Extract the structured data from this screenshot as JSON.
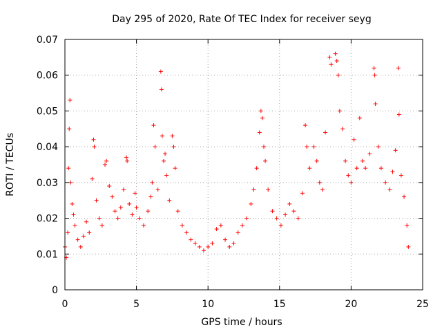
{
  "chart_data": {
    "type": "scatter",
    "title": "Day 295 of 2020, Rate Of TEC Index for receiver seyg",
    "xlabel": "GPS time / hours",
    "ylabel": "ROTI / TECUs",
    "xlim": [
      0,
      25
    ],
    "ylim": [
      0,
      0.07
    ],
    "xticks": [
      0,
      5,
      10,
      15,
      20,
      25
    ],
    "xtick_labels": [
      "0",
      "5",
      "10",
      "15",
      "20",
      "25"
    ],
    "yticks": [
      0,
      0.01,
      0.02,
      0.03,
      0.04,
      0.05,
      0.06,
      0.07
    ],
    "ytick_labels": [
      "0",
      "0.01",
      "0.02",
      "0.03",
      "0.04",
      "0.05",
      "0.06",
      "0.07"
    ],
    "grid": true,
    "legend": "none",
    "marker": "plus",
    "color": "#ff0000",
    "series": [
      {
        "points": [
          [
            0.0,
            0.012
          ],
          [
            0.1,
            0.009
          ],
          [
            0.2,
            0.016
          ],
          [
            0.25,
            0.034
          ],
          [
            0.3,
            0.045
          ],
          [
            0.35,
            0.053
          ],
          [
            0.4,
            0.03
          ],
          [
            0.5,
            0.024
          ],
          [
            0.6,
            0.021
          ],
          [
            0.7,
            0.018
          ],
          [
            0.9,
            0.014
          ],
          [
            1.1,
            0.012
          ],
          [
            1.3,
            0.015
          ],
          [
            1.5,
            0.019
          ],
          [
            1.7,
            0.016
          ],
          [
            1.9,
            0.031
          ],
          [
            2.0,
            0.042
          ],
          [
            2.05,
            0.04
          ],
          [
            2.2,
            0.025
          ],
          [
            2.4,
            0.02
          ],
          [
            2.6,
            0.018
          ],
          [
            2.8,
            0.035
          ],
          [
            2.9,
            0.036
          ],
          [
            3.1,
            0.029
          ],
          [
            3.3,
            0.026
          ],
          [
            3.5,
            0.022
          ],
          [
            3.7,
            0.02
          ],
          [
            3.9,
            0.023
          ],
          [
            4.1,
            0.028
          ],
          [
            4.3,
            0.037
          ],
          [
            4.35,
            0.036
          ],
          [
            4.5,
            0.024
          ],
          [
            4.7,
            0.021
          ],
          [
            4.9,
            0.027
          ],
          [
            5.0,
            0.023
          ],
          [
            5.2,
            0.02
          ],
          [
            5.5,
            0.018
          ],
          [
            5.8,
            0.022
          ],
          [
            6.0,
            0.026
          ],
          [
            6.1,
            0.03
          ],
          [
            6.2,
            0.046
          ],
          [
            6.3,
            0.04
          ],
          [
            6.5,
            0.028
          ],
          [
            6.7,
            0.061
          ],
          [
            6.75,
            0.056
          ],
          [
            6.8,
            0.043
          ],
          [
            6.9,
            0.036
          ],
          [
            7.0,
            0.038
          ],
          [
            7.1,
            0.032
          ],
          [
            7.3,
            0.025
          ],
          [
            7.5,
            0.043
          ],
          [
            7.6,
            0.04
          ],
          [
            7.7,
            0.034
          ],
          [
            7.9,
            0.022
          ],
          [
            8.2,
            0.018
          ],
          [
            8.5,
            0.016
          ],
          [
            8.8,
            0.014
          ],
          [
            9.1,
            0.013
          ],
          [
            9.4,
            0.012
          ],
          [
            9.7,
            0.011
          ],
          [
            10.0,
            0.012
          ],
          [
            10.3,
            0.013
          ],
          [
            10.6,
            0.017
          ],
          [
            10.9,
            0.018
          ],
          [
            11.2,
            0.014
          ],
          [
            11.5,
            0.012
          ],
          [
            11.8,
            0.013
          ],
          [
            12.1,
            0.016
          ],
          [
            12.4,
            0.018
          ],
          [
            12.7,
            0.02
          ],
          [
            13.0,
            0.024
          ],
          [
            13.2,
            0.028
          ],
          [
            13.4,
            0.034
          ],
          [
            13.6,
            0.044
          ],
          [
            13.7,
            0.05
          ],
          [
            13.8,
            0.048
          ],
          [
            13.9,
            0.04
          ],
          [
            14.0,
            0.036
          ],
          [
            14.2,
            0.028
          ],
          [
            14.5,
            0.022
          ],
          [
            14.8,
            0.02
          ],
          [
            15.1,
            0.018
          ],
          [
            15.4,
            0.021
          ],
          [
            15.7,
            0.024
          ],
          [
            16.0,
            0.022
          ],
          [
            16.3,
            0.02
          ],
          [
            16.6,
            0.027
          ],
          [
            16.8,
            0.046
          ],
          [
            16.9,
            0.04
          ],
          [
            17.1,
            0.034
          ],
          [
            17.4,
            0.04
          ],
          [
            17.6,
            0.036
          ],
          [
            17.8,
            0.03
          ],
          [
            18.0,
            0.028
          ],
          [
            18.2,
            0.044
          ],
          [
            18.5,
            0.065
          ],
          [
            18.6,
            0.063
          ],
          [
            18.9,
            0.066
          ],
          [
            19.0,
            0.064
          ],
          [
            19.1,
            0.06
          ],
          [
            19.2,
            0.05
          ],
          [
            19.4,
            0.045
          ],
          [
            19.6,
            0.036
          ],
          [
            19.8,
            0.032
          ],
          [
            20.0,
            0.03
          ],
          [
            20.2,
            0.042
          ],
          [
            20.4,
            0.034
          ],
          [
            20.6,
            0.048
          ],
          [
            20.8,
            0.036
          ],
          [
            21.0,
            0.034
          ],
          [
            21.3,
            0.038
          ],
          [
            21.6,
            0.062
          ],
          [
            21.65,
            0.06
          ],
          [
            21.7,
            0.052
          ],
          [
            21.9,
            0.04
          ],
          [
            22.1,
            0.034
          ],
          [
            22.4,
            0.03
          ],
          [
            22.7,
            0.028
          ],
          [
            22.9,
            0.033
          ],
          [
            23.1,
            0.039
          ],
          [
            23.3,
            0.062
          ],
          [
            23.35,
            0.049
          ],
          [
            23.5,
            0.032
          ],
          [
            23.7,
            0.026
          ],
          [
            23.9,
            0.018
          ],
          [
            24.0,
            0.012
          ]
        ]
      }
    ]
  }
}
